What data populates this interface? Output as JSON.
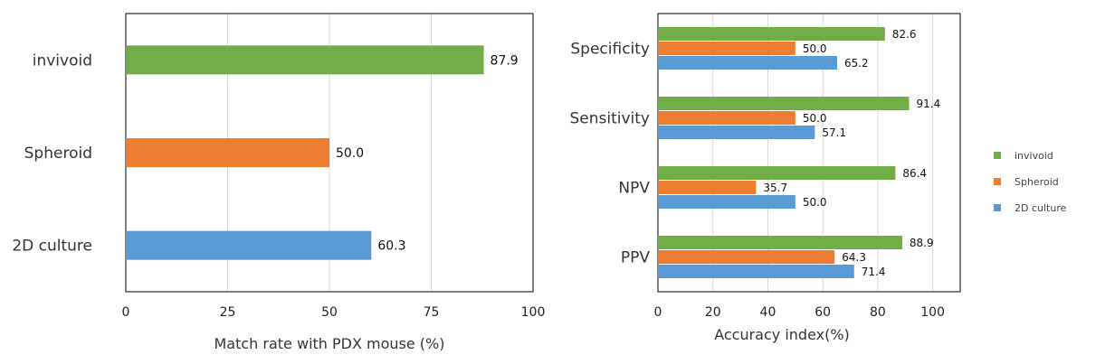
{
  "chart_data": [
    {
      "type": "bar",
      "orientation": "horizontal",
      "title": "",
      "categories": [
        "invivoid",
        "Spheroid",
        "2D culture"
      ],
      "values": [
        87.9,
        50.0,
        60.3
      ],
      "value_labels": [
        "87.9",
        "50.0",
        "60.3"
      ],
      "colors": [
        "#70AD47",
        "#ED7D31",
        "#5B9BD5"
      ],
      "xlabel": "Match rate with PDX mouse (%)",
      "ylabel": "",
      "xlim": [
        0,
        100
      ],
      "xticks": [
        "0",
        "25",
        "50",
        "75",
        "100"
      ],
      "grid": true
    },
    {
      "type": "bar",
      "orientation": "horizontal",
      "title": "",
      "categories": [
        "Specificity",
        "Sensitivity",
        "NPV",
        "PPV"
      ],
      "series": [
        {
          "name": "invivoid",
          "color": "#70AD47",
          "values": [
            82.6,
            91.4,
            86.4,
            88.9
          ],
          "value_labels": [
            "82.6",
            "91.4",
            "86.4",
            "88.9"
          ]
        },
        {
          "name": "Spheroid",
          "color": "#ED7D31",
          "values": [
            50.0,
            50.0,
            35.7,
            64.3
          ],
          "value_labels": [
            "50.0",
            "50.0",
            "35.7",
            "64.3"
          ]
        },
        {
          "name": "2D culture",
          "color": "#5B9BD5",
          "values": [
            65.2,
            57.1,
            50.0,
            71.4
          ],
          "value_labels": [
            "65.2",
            "57.1",
            "50.0",
            "71.4"
          ]
        }
      ],
      "xlabel": "Accuracy index(%)",
      "ylabel": "",
      "xlim": [
        0,
        110
      ],
      "xticks": [
        "0",
        "20",
        "40",
        "60",
        "80",
        "100"
      ],
      "grid": true,
      "legend": "right"
    }
  ]
}
